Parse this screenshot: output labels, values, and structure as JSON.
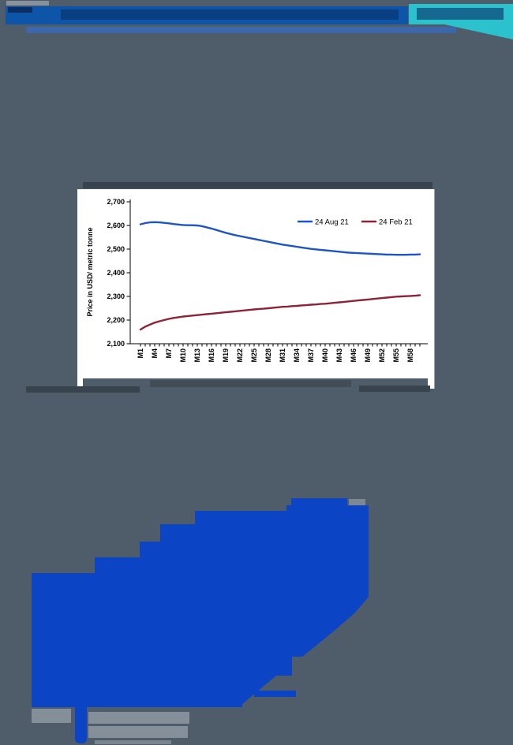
{
  "palette": {
    "bg": "#4f5c69",
    "bar-blue": "#0d55a8",
    "bar-text": "#093f80",
    "navy": "#0b2f63",
    "teal": "#2bc2ce",
    "teal-text": "#15688f",
    "subtitle-blue": "#3969b4",
    "tiny-gray": "#8d97a2",
    "dark-text": "#39434d",
    "dark-text-2": "#424d58",
    "body-blob-blue": "#0b44c4",
    "bottom-gray": "#858f9a",
    "chart-bg": "#ffffff"
  },
  "note": "All header, subtitle, paragraph and footer text in the source image is rendered as illegible anti-aliased blobs; only the embedded chart text is readable.",
  "chart_data": {
    "type": "line",
    "title": "",
    "xlabel": "",
    "ylabel": "Price in USD/ metric tonne",
    "ylim": [
      2100,
      2700
    ],
    "grid": false,
    "legend_position": "top-right-inside",
    "y_ticks": [
      {
        "v": 2700,
        "label": "2,700"
      },
      {
        "v": 2600,
        "label": "2,600"
      },
      {
        "v": 2500,
        "label": "2,500"
      },
      {
        "v": 2400,
        "label": "2,400"
      },
      {
        "v": 2300,
        "label": "2,300"
      },
      {
        "v": 2200,
        "label": "2,200"
      },
      {
        "v": 2100,
        "label": "2,100"
      }
    ],
    "x_tick_labels": [
      "M1",
      "M4",
      "M7",
      "M10",
      "M13",
      "M16",
      "M19",
      "M22",
      "M25",
      "M28",
      "M31",
      "M34",
      "M37",
      "M40",
      "M43",
      "M46",
      "M49",
      "M52",
      "M55",
      "M58"
    ],
    "categories": [
      "M1",
      "M2",
      "M3",
      "M4",
      "M5",
      "M6",
      "M7",
      "M8",
      "M9",
      "M10",
      "M11",
      "M12",
      "M13",
      "M14",
      "M15",
      "M16",
      "M17",
      "M18",
      "M19",
      "M20",
      "M21",
      "M22",
      "M23",
      "M24",
      "M25",
      "M26",
      "M27",
      "M28",
      "M29",
      "M30",
      "M31",
      "M32",
      "M33",
      "M34",
      "M35",
      "M36",
      "M37",
      "M38",
      "M39",
      "M40",
      "M41",
      "M42",
      "M43",
      "M44",
      "M45",
      "M46",
      "M47",
      "M48",
      "M49",
      "M50",
      "M51",
      "M52",
      "M53",
      "M54",
      "M55",
      "M56",
      "M57",
      "M58",
      "M59",
      "M60"
    ],
    "series": [
      {
        "name": "24 Aug 21",
        "color": "#1d55c4",
        "values": [
          2605,
          2610,
          2613,
          2614,
          2613,
          2611,
          2609,
          2606,
          2604,
          2602,
          2601,
          2601,
          2600,
          2597,
          2592,
          2587,
          2581,
          2575,
          2569,
          2564,
          2559,
          2555,
          2551,
          2547,
          2543,
          2539,
          2535,
          2531,
          2527,
          2523,
          2519,
          2516,
          2513,
          2510,
          2507,
          2504,
          2501,
          2499,
          2497,
          2495,
          2493,
          2491,
          2489,
          2487,
          2485,
          2484,
          2483,
          2482,
          2481,
          2480,
          2479,
          2478,
          2477,
          2477,
          2476,
          2476,
          2476,
          2477,
          2477,
          2478
        ]
      },
      {
        "name": "24 Feb 21",
        "color": "#8e2337",
        "values": [
          2160,
          2172,
          2181,
          2189,
          2195,
          2200,
          2205,
          2209,
          2212,
          2215,
          2217,
          2219,
          2221,
          2223,
          2225,
          2227,
          2229,
          2231,
          2233,
          2235,
          2237,
          2239,
          2241,
          2243,
          2245,
          2247,
          2248,
          2250,
          2252,
          2254,
          2256,
          2257,
          2259,
          2260,
          2262,
          2263,
          2265,
          2266,
          2268,
          2269,
          2271,
          2273,
          2275,
          2277,
          2279,
          2281,
          2283,
          2285,
          2287,
          2289,
          2291,
          2293,
          2295,
          2297,
          2299,
          2300,
          2301,
          2302,
          2303,
          2305
        ]
      }
    ]
  }
}
